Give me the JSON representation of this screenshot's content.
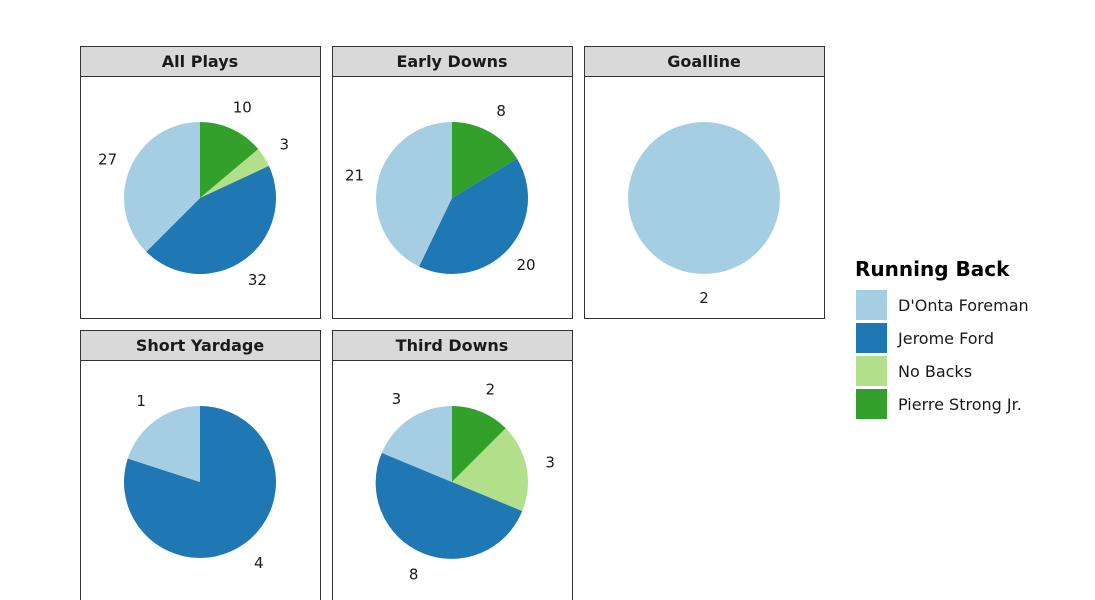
{
  "chart_data": {
    "type": "pie",
    "legend_title": "Running Back",
    "legend_position": "right",
    "series": [
      {
        "name": "D'Onta Foreman",
        "color": "#a6cee3"
      },
      {
        "name": "Jerome Ford",
        "color": "#1f78b4"
      },
      {
        "name": "No Backs",
        "color": "#b2df8a"
      },
      {
        "name": "Pierre Strong Jr.",
        "color": "#33a02c"
      }
    ],
    "facets": [
      {
        "title": "All Plays",
        "values": [
          27,
          32,
          3,
          10
        ]
      },
      {
        "title": "Early Downs",
        "values": [
          21,
          20,
          0,
          8
        ]
      },
      {
        "title": "Goalline",
        "values": [
          2,
          0,
          0,
          0
        ]
      },
      {
        "title": "Short Yardage",
        "values": [
          1,
          4,
          0,
          0
        ]
      },
      {
        "title": "Third Downs",
        "values": [
          3,
          8,
          3,
          2
        ]
      }
    ]
  }
}
